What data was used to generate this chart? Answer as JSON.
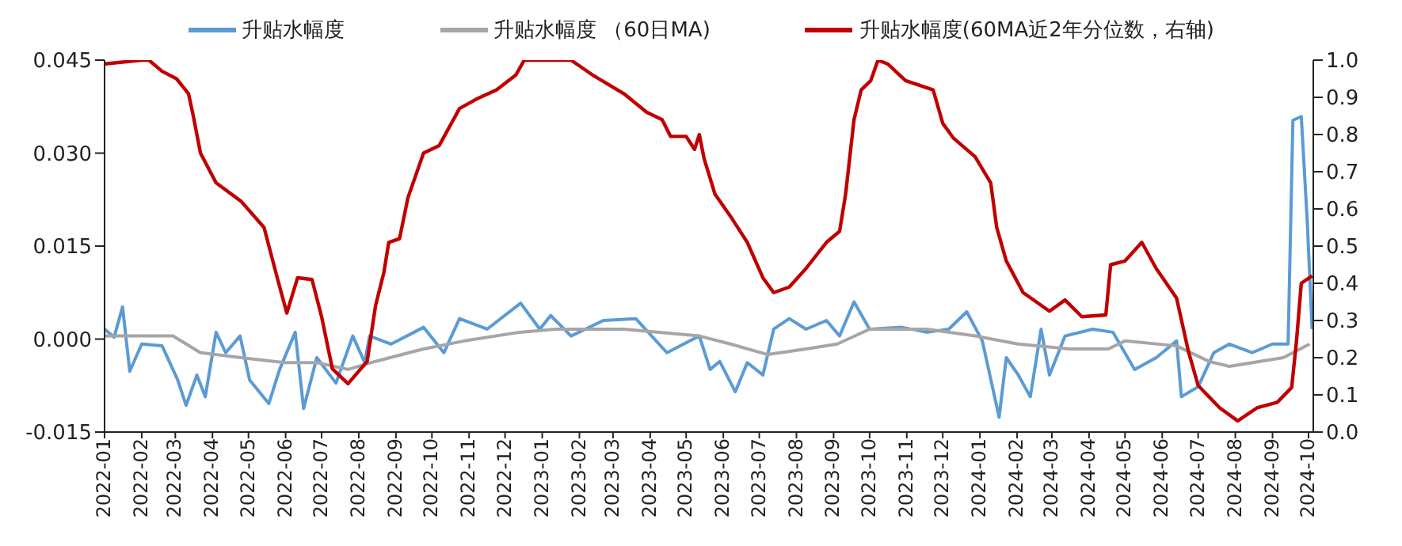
{
  "chart_data": {
    "type": "line",
    "legend": "top",
    "marker": "none",
    "line_style": "solid",
    "xlim": [
      "2022-01-01",
      "2024-10-05"
    ],
    "xticks": [
      "2022-01",
      "2022-02",
      "2022-03",
      "2022-04",
      "2022-05",
      "2022-06",
      "2022-07",
      "2022-08",
      "2022-09",
      "2022-10",
      "2022-11",
      "2022-12",
      "2023-01",
      "2023-02",
      "2023-03",
      "2023-04",
      "2023-05",
      "2023-06",
      "2023-07",
      "2023-08",
      "2023-09",
      "2023-10",
      "2023-11",
      "2023-12",
      "2024-01",
      "2024-02",
      "2024-03",
      "2024-04",
      "2024-05",
      "2024-06",
      "2024-07",
      "2024-08",
      "2024-09",
      "2024-10"
    ],
    "ylim": [
      -0.015,
      0.045
    ],
    "yticks": [
      -0.015,
      {
        "value": 0,
        "label": "0.000"
      },
      0.015,
      {
        "value": 0.03,
        "label": "0.030"
      },
      0.045
    ],
    "y2lim": [
      0,
      1
    ],
    "y2ticks": [
      {
        "value": 0,
        "label": "0.0"
      },
      0.1,
      0.2,
      0.3,
      0.4,
      0.5,
      0.6,
      0.7,
      0.8,
      0.9,
      {
        "value": 1,
        "label": "1.0"
      }
    ],
    "series": [
      {
        "name": "升贴水幅度",
        "color": "#5b9bd5",
        "x": [
          "2022-01-01",
          "2022-01-09",
          "2022-01-16",
          "2022-01-22",
          "2022-02-01",
          "2022-02-18",
          "2022-03-03",
          "2022-03-10",
          "2022-03-19",
          "2022-03-26",
          "2022-04-04",
          "2022-04-12",
          "2022-04-24",
          "2022-05-02",
          "2022-05-18",
          "2022-05-27",
          "2022-06-09",
          "2022-06-16",
          "2022-06-27",
          "2022-07-13",
          "2022-07-27",
          "2022-08-06",
          "2022-08-10",
          "2022-08-28",
          "2022-09-24",
          "2022-10-11",
          "2022-10-24",
          "2022-11-16",
          "2022-12-14",
          "2022-12-30",
          "2023-01-08",
          "2023-01-25",
          "2023-02-21",
          "2023-03-20",
          "2023-04-15",
          "2023-05-12",
          "2023-05-21",
          "2023-05-29",
          "2023-06-11",
          "2023-06-21",
          "2023-07-04",
          "2023-07-13",
          "2023-07-26",
          "2023-08-09",
          "2023-08-26",
          "2023-09-06",
          "2023-09-18",
          "2023-10-01",
          "2023-10-28",
          "2023-11-18",
          "2023-12-06",
          "2023-12-21",
          "2024-01-03",
          "2024-01-17",
          "2024-01-23",
          "2024-02-02",
          "2024-02-12",
          "2024-02-21",
          "2024-02-28",
          "2024-03-12",
          "2024-04-04",
          "2024-04-21",
          "2024-05-09",
          "2024-05-27",
          "2024-06-13",
          "2024-06-17",
          "2024-07-01",
          "2024-07-14",
          "2024-07-27",
          "2024-08-15",
          "2024-09-01",
          "2024-09-14",
          "2024-09-18",
          "2024-09-25",
          "2024-09-30",
          "2024-10-04"
        ],
        "values": [
          0.0016,
          0.0003,
          0.0052,
          -0.0052,
          -0.0008,
          -0.0011,
          -0.0066,
          -0.0107,
          -0.0058,
          -0.0093,
          0.0011,
          -0.0022,
          0.0005,
          -0.0066,
          -0.0104,
          -0.0049,
          0.0011,
          -0.0112,
          -0.003,
          -0.0071,
          0.0005,
          -0.0038,
          0.0005,
          -0.0008,
          0.0019,
          -0.0022,
          0.0033,
          0.0016,
          0.0058,
          0.0016,
          0.0038,
          0.0005,
          0.003,
          0.0033,
          -0.0022,
          0.0005,
          -0.0049,
          -0.0036,
          -0.0085,
          -0.0038,
          -0.0058,
          0.0016,
          0.0033,
          0.0016,
          0.003,
          0.0005,
          0.006,
          0.0016,
          0.0019,
          0.0011,
          0.0016,
          0.0044,
          -0.0003,
          -0.0126,
          -0.003,
          -0.0058,
          -0.0093,
          0.0016,
          -0.0058,
          0.0005,
          0.0016,
          0.0011,
          -0.0049,
          -0.003,
          -0.0003,
          -0.0093,
          -0.0077,
          -0.0022,
          -0.0008,
          -0.0022,
          -0.0008,
          -0.0008,
          0.0353,
          0.0359,
          0.0189,
          0.0016
        ]
      },
      {
        "name": "升贴水幅度 （60日MA)",
        "color": "#a6a6a6",
        "x": [
          "2022-01-01",
          "2022-02-27",
          "2022-03-22",
          "2022-04-25",
          "2022-05-31",
          "2022-06-27",
          "2022-07-23",
          "2022-08-15",
          "2022-09-24",
          "2022-10-28",
          "2022-12-13",
          "2023-01-12",
          "2023-03-10",
          "2023-05-12",
          "2023-06-07",
          "2023-07-08",
          "2023-08-09",
          "2023-09-04",
          "2023-10-01",
          "2023-11-18",
          "2023-12-28",
          "2024-02-02",
          "2024-03-16",
          "2024-04-17",
          "2024-05-01",
          "2024-06-13",
          "2024-07-10",
          "2024-07-27",
          "2024-09-10",
          "2024-10-02"
        ],
        "values": [
          0.0005,
          0.0005,
          -0.0022,
          -0.003,
          -0.0038,
          -0.0038,
          -0.0049,
          -0.0036,
          -0.0016,
          -0.0003,
          0.0011,
          0.0016,
          0.0016,
          0.0005,
          -0.0008,
          -0.0025,
          -0.0016,
          -0.0008,
          0.0016,
          0.0016,
          0.0005,
          -0.0008,
          -0.0016,
          -0.0016,
          -0.0003,
          -0.0011,
          -0.0036,
          -0.0044,
          -0.003,
          -0.0008
        ]
      },
      {
        "name": "升贴水幅度(60MA近2年分位数，右轴)",
        "color": "#c00000",
        "axis": "y2",
        "x": [
          "2022-01-01",
          "2022-02-01",
          "2022-02-07",
          "2022-02-18",
          "2022-03-02",
          "2022-03-12",
          "2022-03-16",
          "2022-03-22",
          "2022-04-04",
          "2022-04-25",
          "2022-05-14",
          "2022-05-25",
          "2022-06-02",
          "2022-06-11",
          "2022-06-23",
          "2022-07-01",
          "2022-07-10",
          "2022-07-23",
          "2022-08-08",
          "2022-08-15",
          "2022-08-22",
          "2022-08-26",
          "2022-09-04",
          "2022-09-11",
          "2022-09-24",
          "2022-10-07",
          "2022-10-24",
          "2022-11-07",
          "2022-11-24",
          "2022-12-10",
          "2022-12-17",
          "2023-01-25",
          "2023-02-12",
          "2023-03-10",
          "2023-03-29",
          "2023-04-11",
          "2023-04-18",
          "2023-05-01",
          "2023-05-08",
          "2023-05-12",
          "2023-05-16",
          "2023-05-25",
          "2023-06-07",
          "2023-06-21",
          "2023-07-04",
          "2023-07-13",
          "2023-07-26",
          "2023-08-09",
          "2023-08-26",
          "2023-09-06",
          "2023-09-11",
          "2023-09-18",
          "2023-09-24",
          "2023-10-02",
          "2023-10-08",
          "2023-10-16",
          "2023-10-31",
          "2023-11-23",
          "2023-12-01",
          "2023-12-10",
          "2023-12-28",
          "2024-01-10",
          "2024-01-15",
          "2024-01-23",
          "2024-02-06",
          "2024-02-28",
          "2024-03-12",
          "2024-03-26",
          "2024-04-15",
          "2024-04-19",
          "2024-05-01",
          "2024-05-15",
          "2024-05-27",
          "2024-06-13",
          "2024-06-23",
          "2024-07-01",
          "2024-07-19",
          "2024-08-03",
          "2024-08-19",
          "2024-09-05",
          "2024-09-17",
          "2024-09-21",
          "2024-09-25",
          "2024-10-04"
        ],
        "values": [
          0.99,
          1.0,
          1.0,
          0.97,
          0.95,
          0.91,
          0.85,
          0.75,
          0.67,
          0.62,
          0.55,
          0.415,
          0.32,
          0.415,
          0.41,
          0.31,
          0.17,
          0.13,
          0.19,
          0.34,
          0.43,
          0.51,
          0.52,
          0.63,
          0.75,
          0.77,
          0.87,
          0.895,
          0.92,
          0.96,
          1.0,
          1.0,
          0.96,
          0.91,
          0.86,
          0.84,
          0.795,
          0.795,
          0.76,
          0.8,
          0.735,
          0.64,
          0.58,
          0.51,
          0.415,
          0.375,
          0.39,
          0.44,
          0.51,
          0.54,
          0.64,
          0.84,
          0.92,
          0.945,
          1.0,
          0.99,
          0.945,
          0.92,
          0.83,
          0.79,
          0.74,
          0.67,
          0.55,
          0.46,
          0.375,
          0.325,
          0.355,
          0.31,
          0.315,
          0.45,
          0.46,
          0.51,
          0.44,
          0.36,
          0.215,
          0.125,
          0.065,
          0.03,
          0.065,
          0.08,
          0.12,
          0.245,
          0.4,
          0.42
        ]
      }
    ]
  }
}
